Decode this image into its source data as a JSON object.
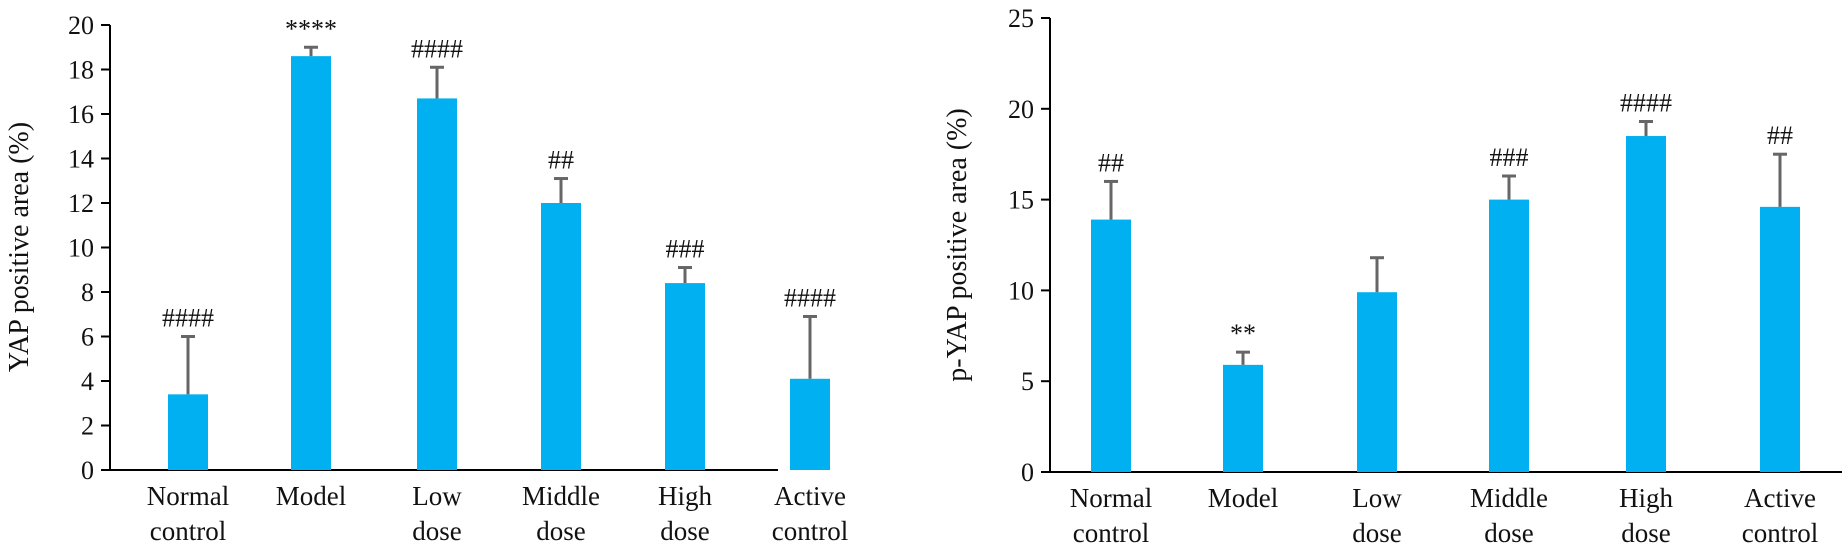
{
  "chart_data": [
    {
      "type": "bar",
      "ylabel": "YAP positive area (%)",
      "ylim": [
        0,
        20
      ],
      "yticks": [
        "0",
        "2",
        "4",
        "6",
        "8",
        "10",
        "12",
        "14",
        "16",
        "18",
        "20"
      ],
      "categories": [
        [
          "Normal",
          "control"
        ],
        [
          "Model"
        ],
        [
          "Low",
          "dose"
        ],
        [
          "Middle",
          "dose"
        ],
        [
          "High",
          "dose"
        ],
        [
          "Active",
          "control"
        ]
      ],
      "values": [
        3.4,
        18.6,
        16.7,
        12.0,
        8.4,
        4.1
      ],
      "errors": [
        2.6,
        0.4,
        1.4,
        1.1,
        0.7,
        2.8
      ],
      "significance": [
        "####",
        "****",
        "####",
        "##",
        "###",
        "####"
      ],
      "bar_color": "#00b0f0",
      "error_color": "#666666"
    },
    {
      "type": "bar",
      "ylabel": "p-YAP positive area (%)",
      "ylim": [
        0,
        25
      ],
      "yticks": [
        "0",
        "5",
        "10",
        "15",
        "20",
        "25"
      ],
      "categories": [
        [
          "Normal",
          "control"
        ],
        [
          "Model"
        ],
        [
          "Low",
          "dose"
        ],
        [
          "Middle",
          "dose"
        ],
        [
          "High",
          "dose"
        ],
        [
          "Active",
          "control"
        ]
      ],
      "values": [
        13.9,
        5.9,
        9.9,
        15.0,
        18.5,
        14.6
      ],
      "errors": [
        2.1,
        0.7,
        1.9,
        1.3,
        0.8,
        2.9
      ],
      "significance": [
        "##",
        "**",
        "",
        "###",
        "####",
        "##"
      ],
      "bar_color": "#00b0f0",
      "error_color": "#666666"
    }
  ]
}
